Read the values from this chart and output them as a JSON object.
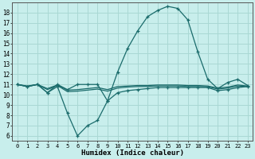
{
  "xlabel": "Humidex (Indice chaleur)",
  "background_color": "#c8eeec",
  "grid_color": "#aad8d4",
  "line_color": "#1a6b6b",
  "xlim": [
    -0.5,
    23.5
  ],
  "ylim": [
    5.5,
    19.0
  ],
  "x_ticks": [
    0,
    1,
    2,
    3,
    4,
    5,
    6,
    7,
    8,
    9,
    10,
    11,
    12,
    13,
    14,
    15,
    16,
    17,
    18,
    19,
    20,
    21,
    22,
    23
  ],
  "y_ticks": [
    6,
    7,
    8,
    9,
    10,
    11,
    12,
    13,
    14,
    15,
    16,
    17,
    18
  ],
  "curve_max": [
    11.0,
    10.8,
    11.0,
    10.2,
    11.0,
    10.5,
    11.0,
    11.0,
    11.0,
    9.4,
    12.2,
    14.5,
    16.2,
    17.6,
    18.2,
    18.6,
    18.4,
    17.3,
    14.2,
    11.5,
    10.6,
    11.2,
    11.5,
    10.9
  ],
  "curve_min": [
    11.0,
    10.8,
    11.0,
    10.2,
    10.8,
    8.2,
    6.0,
    7.0,
    7.5,
    9.4,
    10.2,
    10.4,
    10.5,
    10.6,
    10.7,
    10.7,
    10.7,
    10.7,
    10.7,
    10.7,
    10.4,
    10.5,
    10.7,
    10.8
  ],
  "curve_mean1": [
    11.0,
    10.85,
    11.0,
    10.6,
    10.95,
    10.45,
    10.5,
    10.6,
    10.7,
    10.5,
    10.8,
    10.85,
    10.9,
    10.9,
    10.95,
    10.95,
    10.95,
    10.9,
    10.9,
    10.85,
    10.65,
    10.75,
    10.95,
    10.85
  ],
  "curve_mean2": [
    11.0,
    10.8,
    11.0,
    10.5,
    10.9,
    10.3,
    10.35,
    10.45,
    10.55,
    10.35,
    10.65,
    10.75,
    10.8,
    10.8,
    10.85,
    10.85,
    10.85,
    10.8,
    10.8,
    10.78,
    10.55,
    10.65,
    10.85,
    10.78
  ]
}
